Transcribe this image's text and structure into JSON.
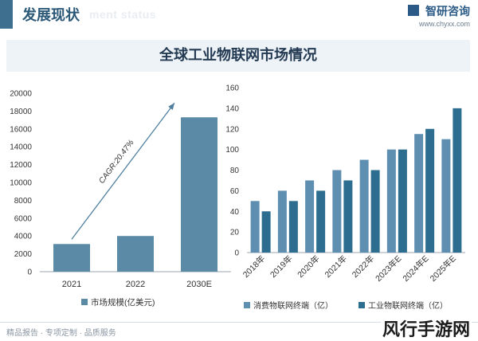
{
  "header": {
    "title": "发展现状",
    "subtitle": "ment status",
    "brand_name": "智研咨询",
    "brand_url": "www.chyxx.com"
  },
  "banner_title": "全球工业物联网市场情况",
  "colors": {
    "bar_market": "#5b8aa6",
    "bar_consumer": "#5f8fb0",
    "bar_industrial": "#2d6d8f",
    "arrow": "#4f7f9f",
    "brand": "#2a5a85"
  },
  "footer": {
    "text": "精品报告 · 专项定制 · 品质服务",
    "watermark": "风行手游网"
  },
  "chart_data": [
    {
      "type": "bar",
      "categories": [
        "2021",
        "2022",
        "2030E"
      ],
      "series": [
        {
          "name": "市场规模(亿美元)",
          "values": [
            3100,
            4000,
            17300
          ]
        }
      ],
      "ylim": [
        0,
        20000
      ],
      "yticks": [
        0,
        2000,
        4000,
        6000,
        8000,
        10000,
        12000,
        14000,
        16000,
        18000,
        20000
      ],
      "annotation": "CAGR:20.47%",
      "legend_position": "bottom",
      "grid": false
    },
    {
      "type": "bar",
      "categories": [
        "2018年",
        "2019年",
        "2020年",
        "2021年",
        "2022年",
        "2023年E",
        "2024年E",
        "2025年E"
      ],
      "series": [
        {
          "name": "消费物联网终端（亿）",
          "values": [
            50,
            60,
            70,
            80,
            90,
            100,
            115,
            110
          ]
        },
        {
          "name": "工业物联网终端（亿）",
          "values": [
            40,
            50,
            60,
            70,
            80,
            100,
            120,
            140
          ]
        }
      ],
      "ylim": [
        0,
        160
      ],
      "yticks": [
        0,
        20,
        40,
        60,
        80,
        100,
        120,
        140,
        160
      ],
      "legend_position": "bottom",
      "grid": false
    }
  ]
}
